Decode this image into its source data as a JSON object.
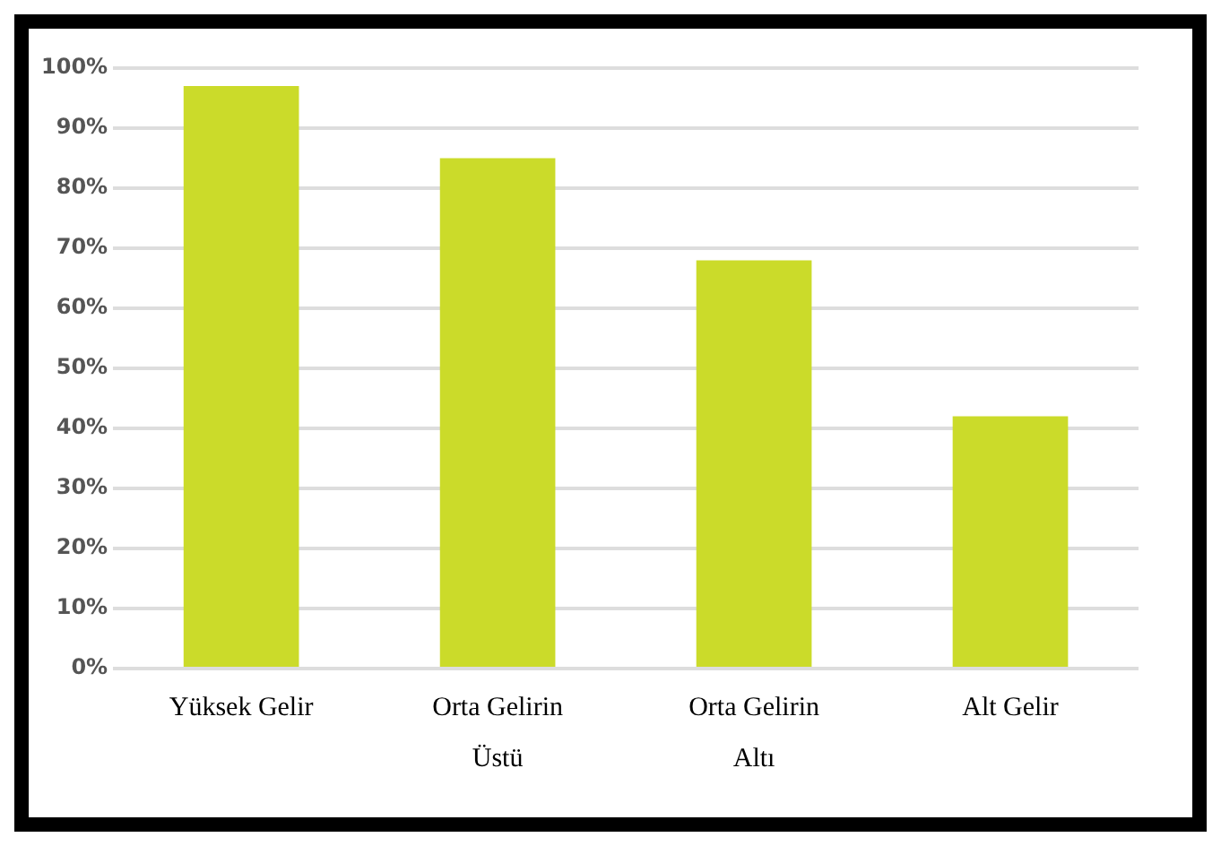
{
  "chart_data": {
    "type": "bar",
    "categories": [
      "Yüksek Gelir",
      "Orta Gelirin Üstü",
      "Orta Gelirin Altı",
      "Alt Gelir"
    ],
    "values": [
      97,
      85,
      68,
      42
    ],
    "color": "#cbdb2a",
    "ylim": [
      0,
      100
    ],
    "yticks": [
      {
        "value": 0,
        "label": "0%"
      },
      {
        "value": 10,
        "label": "10%"
      },
      {
        "value": 20,
        "label": "20%"
      },
      {
        "value": 30,
        "label": "30%"
      },
      {
        "value": 40,
        "label": "40%"
      },
      {
        "value": 50,
        "label": "50%"
      },
      {
        "value": 60,
        "label": "60%"
      },
      {
        "value": 70,
        "label": "70%"
      },
      {
        "value": 80,
        "label": "80%"
      },
      {
        "value": 90,
        "label": "90%"
      },
      {
        "value": 100,
        "label": "100%"
      }
    ],
    "grid": "y",
    "legend": false
  }
}
